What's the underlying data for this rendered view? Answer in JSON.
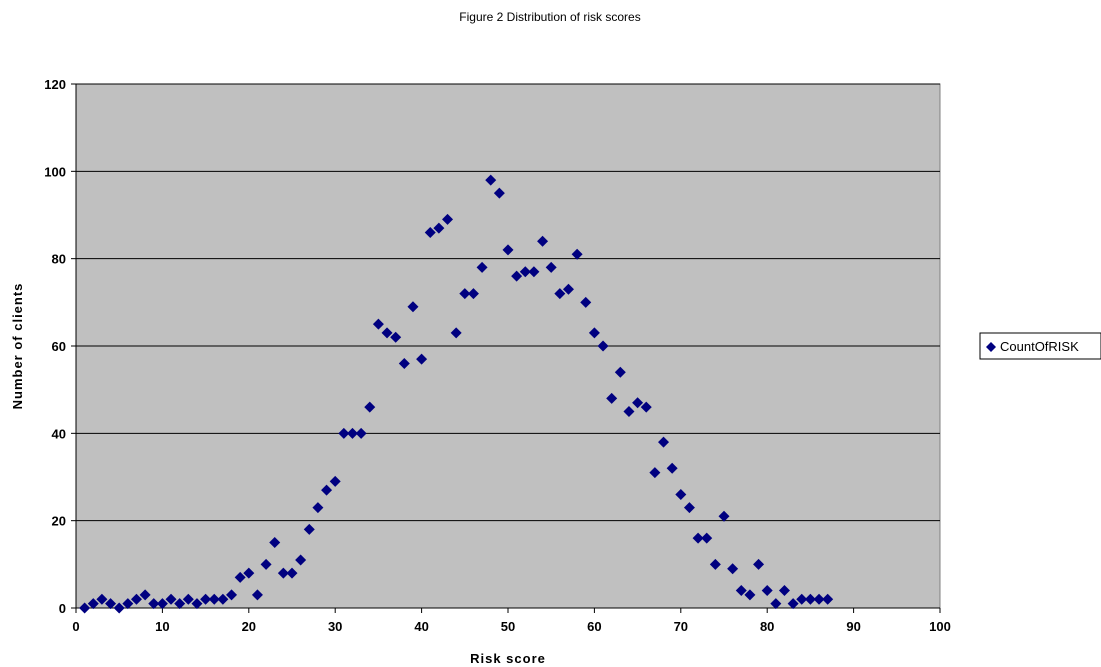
{
  "chart_data": {
    "type": "scatter",
    "title": "Figure 2 Distribution of risk scores",
    "xlabel": "Risk score",
    "ylabel": "Number of clients",
    "xlim": [
      0,
      100
    ],
    "ylim": [
      0,
      120
    ],
    "xticks": [
      0,
      10,
      20,
      30,
      40,
      50,
      60,
      70,
      80,
      90,
      100
    ],
    "yticks": [
      0,
      20,
      40,
      60,
      80,
      100,
      120
    ],
    "grid": "horizontal",
    "plot_background": "#c0c0c0",
    "legend_position": "right",
    "series": [
      {
        "name": "CountOfRISK",
        "color": "#000080",
        "marker": "diamond",
        "points": [
          [
            1,
            0
          ],
          [
            2,
            1
          ],
          [
            3,
            2
          ],
          [
            4,
            1
          ],
          [
            5,
            0
          ],
          [
            6,
            1
          ],
          [
            7,
            2
          ],
          [
            8,
            3
          ],
          [
            9,
            1
          ],
          [
            10,
            1
          ],
          [
            11,
            2
          ],
          [
            12,
            1
          ],
          [
            13,
            2
          ],
          [
            14,
            1
          ],
          [
            15,
            2
          ],
          [
            16,
            2
          ],
          [
            17,
            2
          ],
          [
            18,
            3
          ],
          [
            19,
            7
          ],
          [
            20,
            8
          ],
          [
            21,
            3
          ],
          [
            22,
            10
          ],
          [
            23,
            15
          ],
          [
            24,
            8
          ],
          [
            25,
            8
          ],
          [
            26,
            11
          ],
          [
            27,
            18
          ],
          [
            28,
            23
          ],
          [
            29,
            27
          ],
          [
            30,
            29
          ],
          [
            31,
            40
          ],
          [
            32,
            40
          ],
          [
            33,
            40
          ],
          [
            34,
            46
          ],
          [
            35,
            65
          ],
          [
            36,
            63
          ],
          [
            37,
            62
          ],
          [
            38,
            56
          ],
          [
            39,
            69
          ],
          [
            40,
            57
          ],
          [
            41,
            86
          ],
          [
            42,
            87
          ],
          [
            43,
            89
          ],
          [
            44,
            63
          ],
          [
            45,
            72
          ],
          [
            46,
            72
          ],
          [
            47,
            78
          ],
          [
            48,
            98
          ],
          [
            49,
            95
          ],
          [
            50,
            82
          ],
          [
            51,
            76
          ],
          [
            52,
            77
          ],
          [
            53,
            77
          ],
          [
            54,
            84
          ],
          [
            55,
            78
          ],
          [
            56,
            72
          ],
          [
            57,
            73
          ],
          [
            58,
            81
          ],
          [
            59,
            70
          ],
          [
            60,
            63
          ],
          [
            61,
            60
          ],
          [
            62,
            48
          ],
          [
            63,
            54
          ],
          [
            64,
            45
          ],
          [
            65,
            47
          ],
          [
            66,
            46
          ],
          [
            67,
            31
          ],
          [
            68,
            38
          ],
          [
            69,
            32
          ],
          [
            70,
            26
          ],
          [
            71,
            23
          ],
          [
            72,
            16
          ],
          [
            73,
            16
          ],
          [
            74,
            10
          ],
          [
            75,
            21
          ],
          [
            76,
            9
          ],
          [
            77,
            4
          ],
          [
            78,
            3
          ],
          [
            79,
            10
          ],
          [
            80,
            4
          ],
          [
            81,
            1
          ],
          [
            82,
            4
          ],
          [
            83,
            1
          ],
          [
            84,
            2
          ],
          [
            85,
            2
          ],
          [
            86,
            2
          ],
          [
            87,
            2
          ]
        ]
      }
    ]
  }
}
